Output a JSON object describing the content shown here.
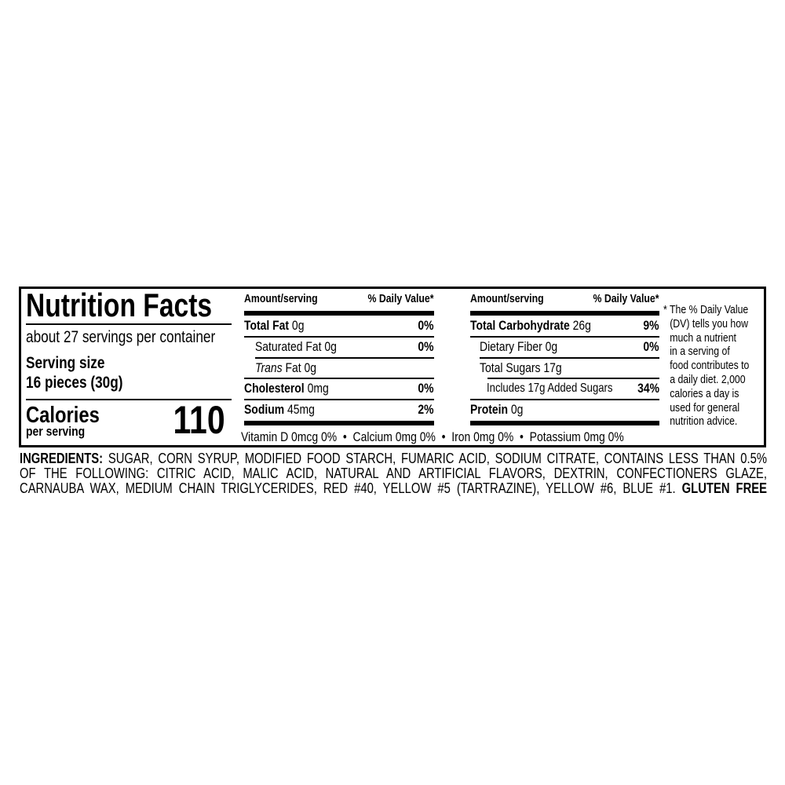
{
  "label": {
    "title": "Nutrition Facts",
    "servings_per_container": "about 27 servings per container",
    "serving_size_label": "Serving size",
    "serving_size_value": "16 pieces (30g)",
    "calories_label": "Calories",
    "calories_sublabel": "per serving",
    "calories_value": "110",
    "columns": {
      "amount": "Amount/serving",
      "dv": "% Daily Value*"
    },
    "left_nutrients": [
      {
        "name": "Total Fat",
        "amount": "0g",
        "dv": "0%"
      },
      {
        "name": "Saturated Fat",
        "amount": "0g",
        "dv": "0%"
      },
      {
        "name": "Trans",
        "name_suffix": "Fat",
        "amount": "0g",
        "dv": ""
      },
      {
        "name": "Cholesterol",
        "amount": "0mg",
        "dv": "0%"
      },
      {
        "name": "Sodium",
        "amount": "45mg",
        "dv": "2%"
      }
    ],
    "right_nutrients": [
      {
        "name": "Total Carbohydrate",
        "amount": "26g",
        "dv": "9%"
      },
      {
        "name": "Dietary Fiber",
        "amount": "0g",
        "dv": "0%"
      },
      {
        "name": "Total Sugars",
        "amount": "17g",
        "dv": ""
      },
      {
        "name": "Includes 17g Added Sugars",
        "amount": "",
        "dv": "34%"
      },
      {
        "name": "Protein",
        "amount": "0g",
        "dv": ""
      }
    ],
    "micronutrients": "Vitamin D 0mcg 0%  •  Calcium 0mg 0%  •  Iron 0mg 0%  •  Potassium 0mg 0%",
    "footnote": "* The % Daily Value (DV) tells you how much a nutrient in a serving of food contributes to a daily diet. 2,000 calories a day is used for general nutrition advice.",
    "footnote_lines": [
      "* The % Daily Value",
      "(DV) tells you how",
      "much a nutrient",
      "in a serving of",
      "food contributes to",
      "a daily diet. 2,000",
      "calories a day is",
      "used for general",
      "nutrition advice."
    ]
  },
  "ingredients": {
    "label": "INGREDIENTS:",
    "lines": [
      "SUGAR, CORN SYRUP, MODIFIED FOOD STARCH, FUMARIC ACID, SODIUM CITRATE, CONTAINS LESS THAN 0.5%",
      "OF THE FOLLOWING: CITRIC ACID, MALIC ACID, NATURAL AND ARTIFICIAL FLAVORS, DEXTRIN, CONFECTIONERS GLAZE,",
      "CARNAUBA WAX, MEDIUM CHAIN TRIGLYCERIDES, RED #40, YELLOW #5 (TARTRAZINE), YELLOW #6, BLUE #1."
    ],
    "allergen_note": "GLUTEN FREE"
  }
}
